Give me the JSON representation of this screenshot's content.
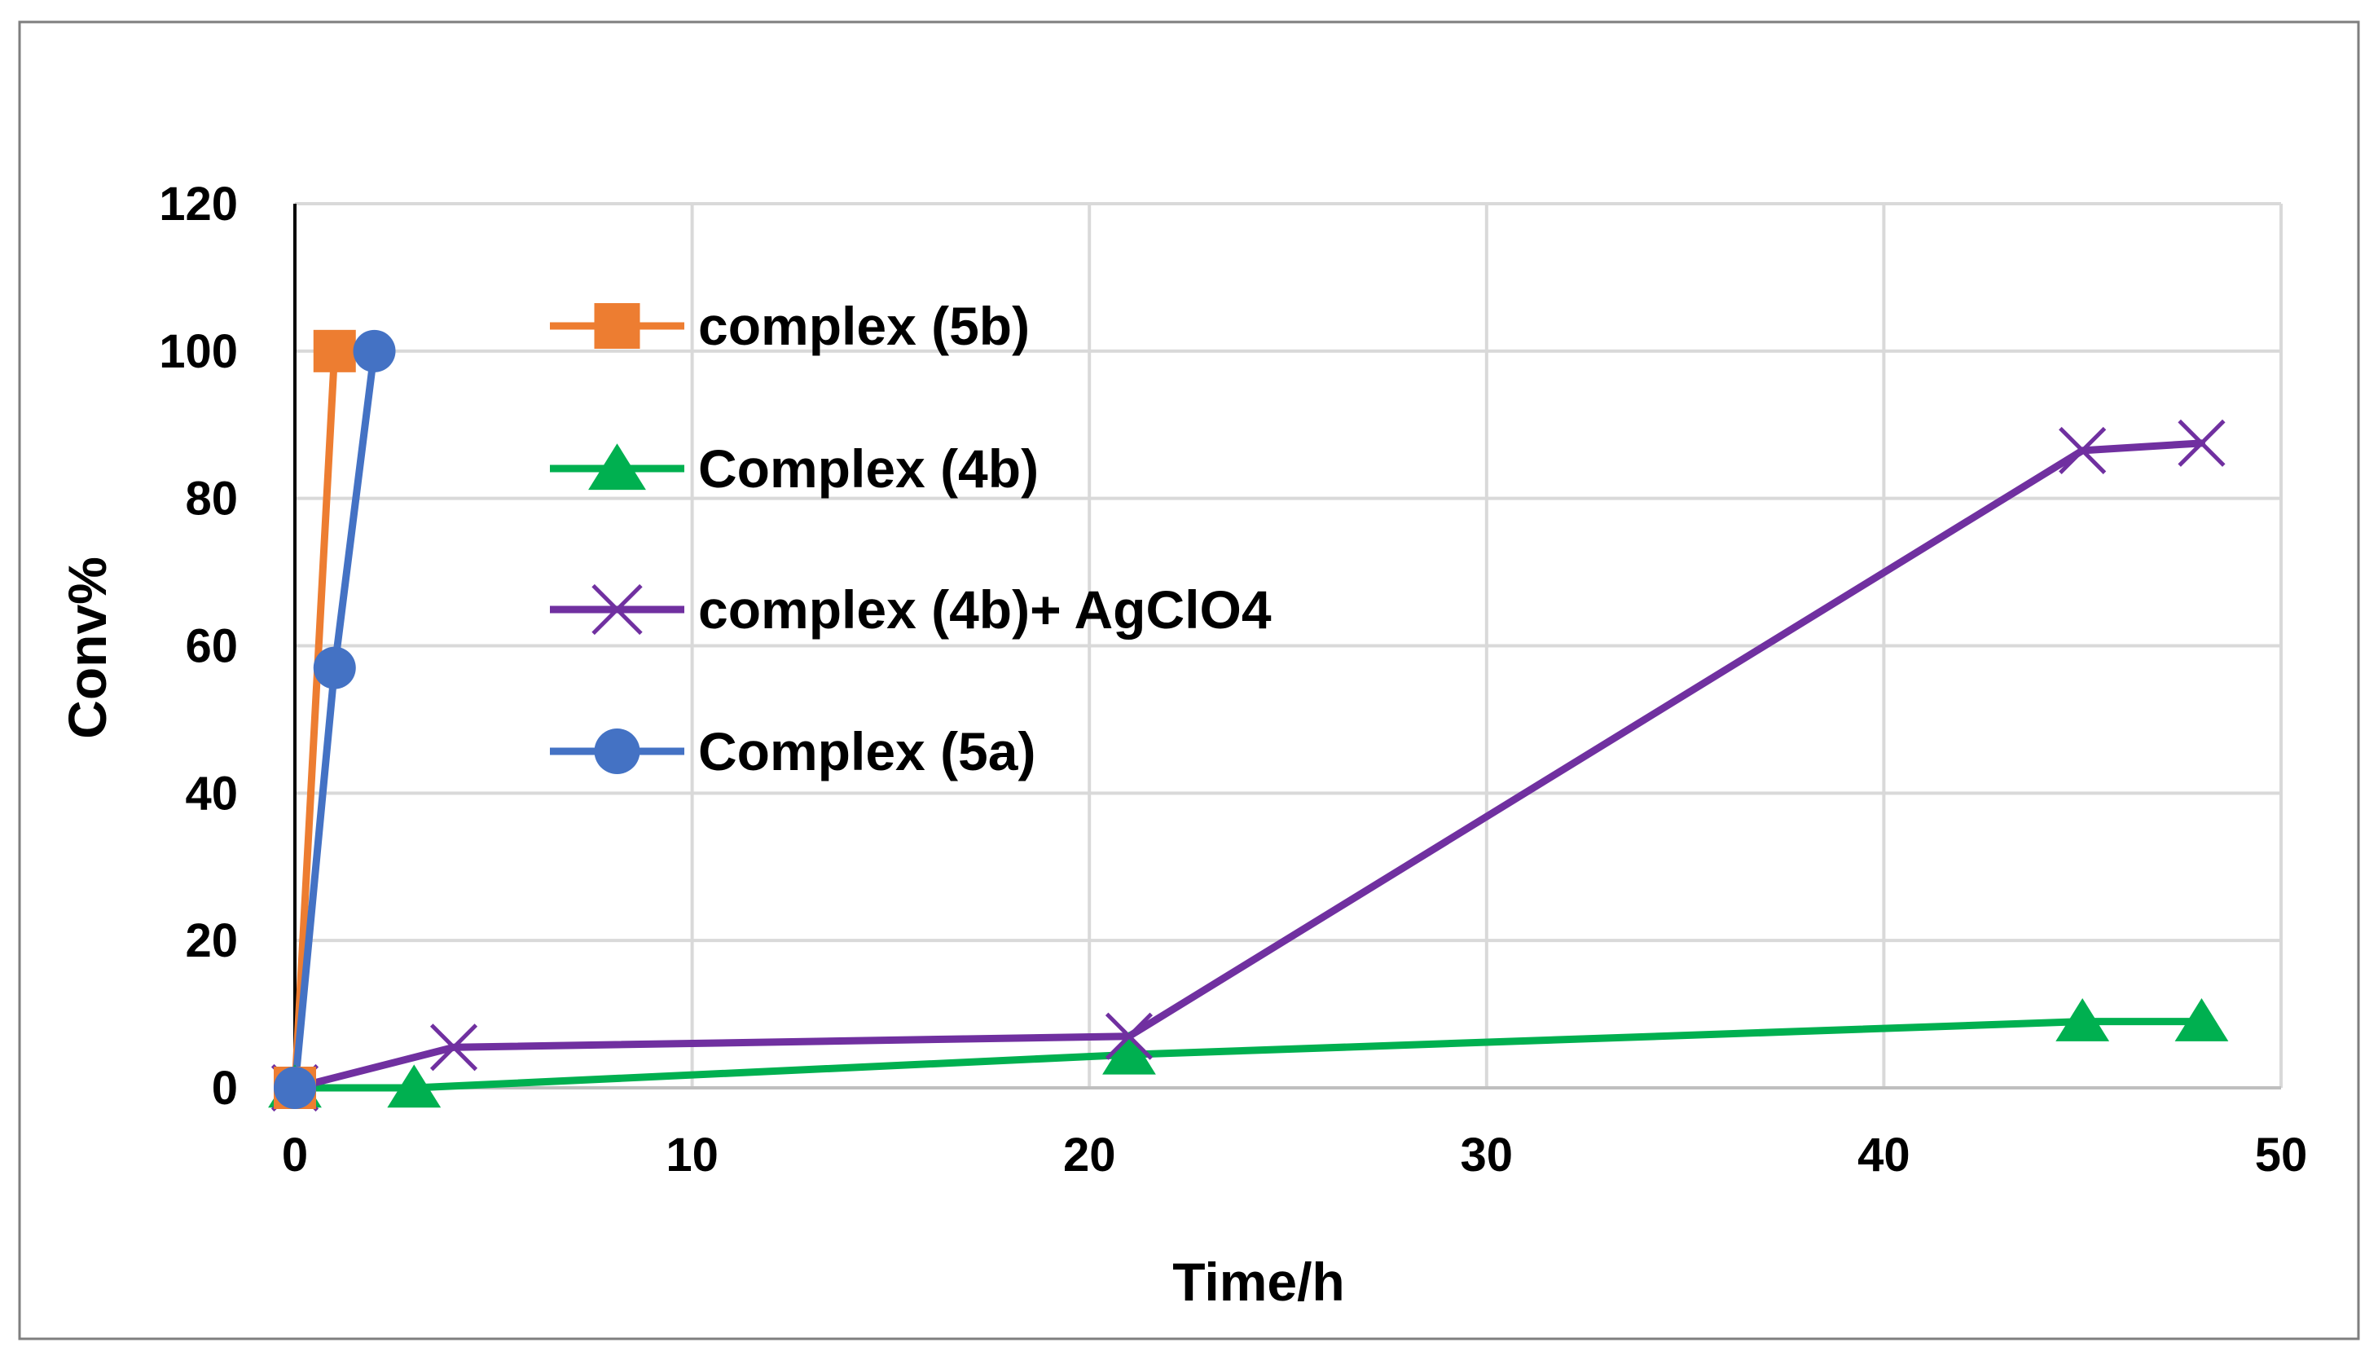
{
  "chart_data": {
    "type": "line",
    "title": "",
    "xlabel": "Time/h",
    "ylabel": "Conv%",
    "xlim": [
      0,
      50
    ],
    "ylim": [
      0,
      120
    ],
    "x_ticks": [
      0,
      10,
      20,
      30,
      40,
      50
    ],
    "x_tick_labels": [
      "0",
      "10",
      "20",
      "30",
      "40",
      "50"
    ],
    "y_ticks": [
      0,
      20,
      40,
      60,
      80,
      100,
      120
    ],
    "y_tick_labels": [
      "0",
      "20",
      "40",
      "60",
      "80",
      "100",
      "120"
    ],
    "grid": true,
    "legend_position": "top-left",
    "series": [
      {
        "name": "complex (5b)",
        "color": "#ED7D31",
        "marker": "square",
        "x": [
          0,
          1
        ],
        "y": [
          0,
          100
        ]
      },
      {
        "name": "Complex (4b)",
        "color": "#00B050",
        "marker": "triangle",
        "x": [
          0,
          3,
          21,
          45,
          48
        ],
        "y": [
          0,
          0,
          4.5,
          9,
          9
        ]
      },
      {
        "name": "complex (4b)+ AgClO4",
        "color": "#7030A0",
        "marker": "x",
        "x": [
          0,
          4,
          21,
          45,
          48
        ],
        "y": [
          0,
          5.5,
          7,
          86.5,
          87.5
        ]
      },
      {
        "name": "Complex (5a)",
        "color": "#4472C4",
        "marker": "circle",
        "x": [
          0,
          1,
          2
        ],
        "y": [
          0,
          57,
          100
        ]
      }
    ]
  }
}
